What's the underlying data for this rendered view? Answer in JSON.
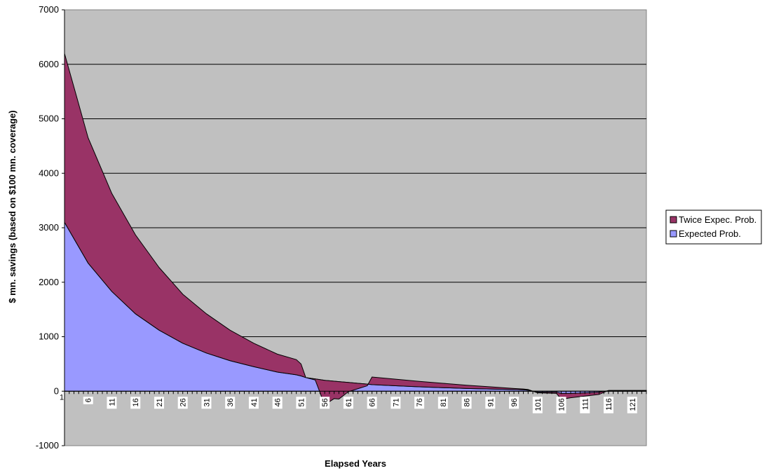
{
  "chart_data": {
    "type": "area",
    "title": "",
    "xlabel": "Elapsed Years",
    "ylabel": "$ mn. savings (based on $100 mn. coverage)",
    "ylim": [
      -1000,
      7000
    ],
    "yticks": [
      -1000,
      0,
      1000,
      2000,
      3000,
      4000,
      5000,
      6000,
      7000
    ],
    "xlim": [
      1,
      124
    ],
    "xticks": [
      1,
      6,
      11,
      16,
      21,
      26,
      31,
      36,
      41,
      46,
      51,
      56,
      61,
      66,
      71,
      76,
      81,
      86,
      91,
      96,
      101,
      106,
      111,
      116,
      121
    ],
    "grid": true,
    "stacked": true,
    "legend_position": "right",
    "series": [
      {
        "name": "Twice Expec. Prob.",
        "color": "#993366",
        "x": [
          1,
          6,
          11,
          16,
          21,
          26,
          31,
          36,
          41,
          46,
          50,
          51,
          52,
          54,
          56,
          58,
          59,
          61,
          63,
          65,
          66,
          71,
          76,
          81,
          86,
          91,
          96,
          98,
          99,
          101,
          103,
          105,
          106,
          108,
          111,
          114,
          116,
          121,
          124
        ],
        "values": [
          3100,
          2300,
          1800,
          1450,
          1150,
          900,
          720,
          560,
          430,
          330,
          280,
          220,
          0,
          -20,
          -450,
          -320,
          -320,
          -170,
          -100,
          -30,
          140,
          120,
          100,
          80,
          60,
          40,
          20,
          15,
          10,
          -10,
          -15,
          -20,
          -110,
          -80,
          -60,
          -40,
          5,
          5,
          5
        ]
      },
      {
        "name": "Expected Prob.",
        "color": "#9999FF",
        "x": [
          1,
          6,
          11,
          16,
          21,
          26,
          31,
          36,
          41,
          46,
          50,
          51,
          52,
          56,
          61,
          65,
          66,
          71,
          76,
          81,
          86,
          91,
          96,
          98,
          99,
          101,
          103,
          105,
          106,
          108,
          111,
          114,
          116,
          121,
          124
        ],
        "values": [
          3100,
          2350,
          1830,
          1420,
          1120,
          880,
          700,
          560,
          450,
          350,
          300,
          280,
          250,
          200,
          160,
          130,
          120,
          100,
          80,
          65,
          50,
          40,
          30,
          25,
          20,
          -20,
          -20,
          -20,
          -40,
          -40,
          -30,
          -20,
          10,
          10,
          10
        ]
      }
    ]
  }
}
